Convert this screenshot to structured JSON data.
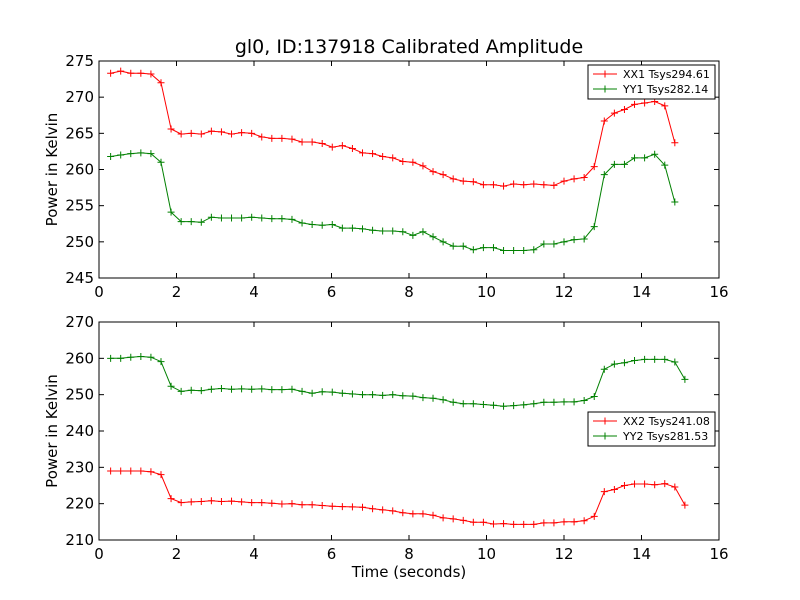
{
  "chart_data": [
    {
      "type": "line",
      "title": "gl0, ID:137918 Calibrated Amplitude",
      "xlabel": "",
      "ylabel": "Power in Kelvin",
      "xlim": [
        0,
        16
      ],
      "ylim": [
        245,
        275
      ],
      "xticks": [
        "0",
        "2",
        "4",
        "6",
        "8",
        "10",
        "12",
        "14",
        "16"
      ],
      "yticks": [
        "245",
        "250",
        "255",
        "260",
        "265",
        "270",
        "275"
      ],
      "grid": false,
      "legend_position": "top-right",
      "x": [
        0.3,
        0.56,
        0.82,
        1.08,
        1.34,
        1.6,
        1.86,
        2.12,
        2.38,
        2.64,
        2.9,
        3.16,
        3.42,
        3.68,
        3.94,
        4.2,
        4.46,
        4.72,
        4.98,
        5.24,
        5.5,
        5.76,
        6.02,
        6.28,
        6.54,
        6.8,
        7.06,
        7.32,
        7.58,
        7.84,
        8.1,
        8.36,
        8.62,
        8.88,
        9.14,
        9.4,
        9.66,
        9.92,
        10.18,
        10.44,
        10.7,
        10.96,
        11.22,
        11.48,
        11.74,
        12.0,
        12.26,
        12.52,
        12.78,
        13.04,
        13.3,
        13.56,
        13.82,
        14.08,
        14.34,
        14.6,
        14.86,
        15.12
      ],
      "series": [
        {
          "name": "XX1 Tsys294.61",
          "color": "#ff0000",
          "values": [
            273.3,
            273.6,
            273.3,
            273.3,
            273.2,
            272.0,
            265.6,
            264.9,
            265.0,
            264.9,
            265.3,
            265.2,
            264.9,
            265.1,
            265.0,
            264.5,
            264.3,
            264.3,
            264.2,
            263.8,
            263.8,
            263.6,
            263.1,
            263.3,
            262.9,
            262.3,
            262.2,
            261.8,
            261.6,
            261.1,
            261.0,
            260.5,
            259.7,
            259.3,
            258.7,
            258.4,
            258.3,
            257.9,
            257.9,
            257.7,
            258.0,
            257.9,
            258.0,
            257.9,
            257.8,
            258.4,
            258.7,
            258.9,
            260.4,
            266.7,
            267.8,
            268.3,
            269.0,
            269.2,
            269.4,
            268.8,
            263.7,
            null
          ]
        },
        {
          "name": "YY1 Tsys282.14",
          "color": "#008000",
          "values": [
            261.8,
            262.0,
            262.2,
            262.3,
            262.2,
            261.0,
            254.1,
            252.8,
            252.8,
            252.7,
            253.4,
            253.3,
            253.3,
            253.3,
            253.4,
            253.3,
            253.2,
            253.2,
            253.1,
            252.6,
            252.4,
            252.3,
            252.4,
            251.9,
            251.9,
            251.8,
            251.6,
            251.5,
            251.5,
            251.4,
            250.9,
            251.4,
            250.7,
            250.0,
            249.4,
            249.4,
            248.9,
            249.2,
            249.2,
            248.8,
            248.8,
            248.8,
            248.9,
            249.7,
            249.7,
            250.0,
            250.3,
            250.4,
            252.1,
            259.3,
            260.7,
            260.7,
            261.6,
            261.6,
            262.1,
            260.6,
            255.5,
            null
          ]
        }
      ]
    },
    {
      "type": "line",
      "title": "",
      "xlabel": "Time (seconds)",
      "ylabel": "Power in Kelvin",
      "xlim": [
        0,
        16
      ],
      "ylim": [
        210,
        270
      ],
      "xticks": [
        "0",
        "2",
        "4",
        "6",
        "8",
        "10",
        "12",
        "14",
        "16"
      ],
      "yticks": [
        "210",
        "220",
        "230",
        "240",
        "250",
        "260",
        "270"
      ],
      "grid": false,
      "legend_position": "center-right",
      "x": [
        0.3,
        0.56,
        0.82,
        1.08,
        1.34,
        1.6,
        1.86,
        2.12,
        2.38,
        2.64,
        2.9,
        3.16,
        3.42,
        3.68,
        3.94,
        4.2,
        4.46,
        4.72,
        4.98,
        5.24,
        5.5,
        5.76,
        6.02,
        6.28,
        6.54,
        6.8,
        7.06,
        7.32,
        7.58,
        7.84,
        8.1,
        8.36,
        8.62,
        8.88,
        9.14,
        9.4,
        9.66,
        9.92,
        10.18,
        10.44,
        10.7,
        10.96,
        11.22,
        11.48,
        11.74,
        12.0,
        12.26,
        12.52,
        12.78,
        13.04,
        13.3,
        13.56,
        13.82,
        14.08,
        14.34,
        14.6,
        14.86,
        15.12
      ],
      "series": [
        {
          "name": "XX2 Tsys241.08",
          "color": "#ff0000",
          "values": [
            229.0,
            229.0,
            229.0,
            229.0,
            228.8,
            228.0,
            221.4,
            220.3,
            220.5,
            220.6,
            220.8,
            220.6,
            220.7,
            220.5,
            220.3,
            220.3,
            220.1,
            219.9,
            220.0,
            219.7,
            219.7,
            219.5,
            219.3,
            219.2,
            219.1,
            219.0,
            218.6,
            218.3,
            218.0,
            217.5,
            217.2,
            217.2,
            216.8,
            216.1,
            215.8,
            215.4,
            214.9,
            214.9,
            214.4,
            214.5,
            214.3,
            214.3,
            214.3,
            214.7,
            214.7,
            215.0,
            215.0,
            215.3,
            216.5,
            223.3,
            223.9,
            225.0,
            225.4,
            225.4,
            225.2,
            225.5,
            224.6,
            219.6
          ]
        },
        {
          "name": "YY2 Tsys281.53",
          "color": "#008000",
          "values": [
            260.0,
            260.0,
            260.3,
            260.5,
            260.3,
            259.1,
            252.3,
            250.9,
            251.2,
            251.1,
            251.5,
            251.7,
            251.5,
            251.6,
            251.5,
            251.6,
            251.4,
            251.4,
            251.5,
            250.9,
            250.4,
            250.8,
            250.7,
            250.4,
            250.2,
            250.0,
            250.0,
            249.8,
            250.0,
            249.7,
            249.6,
            249.2,
            249.0,
            248.6,
            247.9,
            247.5,
            247.5,
            247.3,
            247.1,
            246.8,
            247.0,
            247.2,
            247.5,
            247.9,
            247.9,
            248.0,
            248.0,
            248.4,
            249.5,
            257.0,
            258.4,
            258.8,
            259.4,
            259.7,
            259.7,
            259.7,
            259.0,
            254.2
          ]
        }
      ]
    }
  ]
}
